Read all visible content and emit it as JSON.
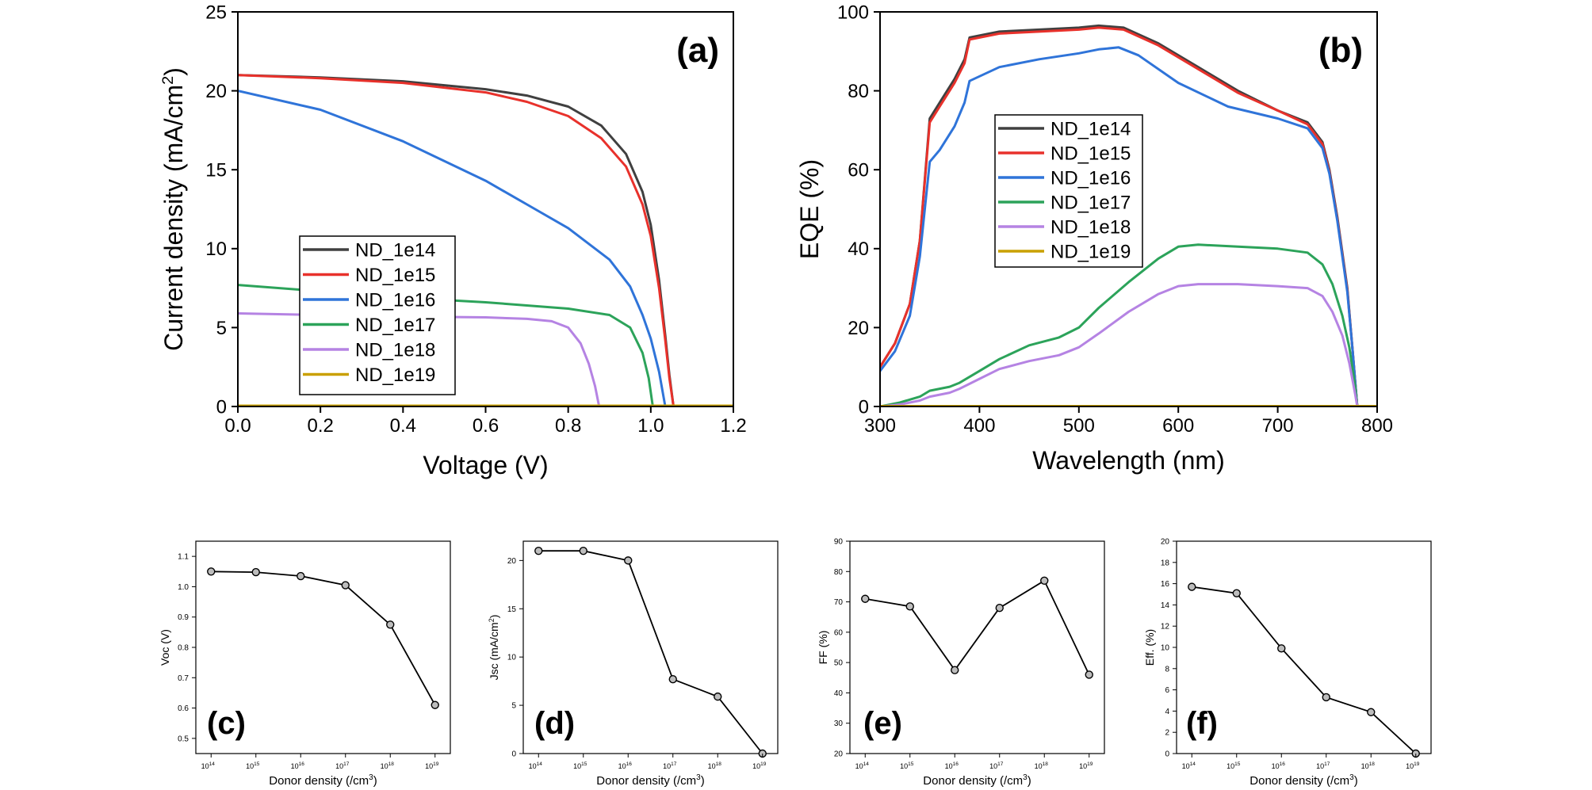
{
  "figure": {
    "colors": {
      "ND_1e14": "#404040",
      "ND_1e15": "#e8312b",
      "ND_1e16": "#2f74d9",
      "ND_1e17": "#2ca35a",
      "ND_1e18": "#b583e3",
      "ND_1e19": "#c9a000",
      "marker": "#000000"
    }
  },
  "chart_data": [
    {
      "id": "a",
      "panel_label": "(a)",
      "type": "line",
      "xlabel": "Voltage (V)",
      "ylabel_main": "Current density (mA/cm",
      "ylabel_sup": "2",
      "ylabel_tail": ")",
      "xlim": [
        0.0,
        1.2
      ],
      "ylim": [
        0,
        25
      ],
      "xticks": [
        0.0,
        0.2,
        0.4,
        0.6,
        0.8,
        1.0,
        1.2
      ],
      "xtick_labels": [
        "0.0",
        "0.2",
        "0.4",
        "0.6",
        "0.8",
        "1.0",
        "1.2"
      ],
      "yticks": [
        0,
        5,
        10,
        15,
        20,
        25
      ],
      "ytick_labels": [
        "0",
        "5",
        "10",
        "15",
        "20",
        "25"
      ],
      "legend": [
        "ND_1e14",
        "ND_1e15",
        "ND_1e16",
        "ND_1e17",
        "ND_1e18",
        "ND_1e19"
      ],
      "series": [
        {
          "name": "ND_1e14",
          "x": [
            0,
            0.2,
            0.4,
            0.6,
            0.7,
            0.8,
            0.88,
            0.94,
            0.98,
            1.0,
            1.02,
            1.035,
            1.045,
            1.055
          ],
          "y": [
            21.0,
            20.85,
            20.6,
            20.1,
            19.7,
            19.0,
            17.8,
            16.0,
            13.6,
            11.5,
            8.0,
            4.5,
            2.0,
            0
          ]
        },
        {
          "name": "ND_1e15",
          "x": [
            0,
            0.2,
            0.4,
            0.6,
            0.7,
            0.8,
            0.88,
            0.94,
            0.98,
            1.0,
            1.02,
            1.035,
            1.045,
            1.055
          ],
          "y": [
            21.0,
            20.8,
            20.5,
            19.9,
            19.3,
            18.4,
            17.0,
            15.2,
            12.8,
            10.8,
            7.5,
            4.2,
            1.8,
            0
          ]
        },
        {
          "name": "ND_1e16",
          "x": [
            0,
            0.2,
            0.4,
            0.6,
            0.7,
            0.8,
            0.9,
            0.95,
            0.98,
            1.0,
            1.02,
            1.035
          ],
          "y": [
            20.0,
            18.8,
            16.8,
            14.3,
            12.8,
            11.3,
            9.3,
            7.6,
            5.8,
            4.3,
            2.2,
            0
          ]
        },
        {
          "name": "ND_1e17",
          "x": [
            0,
            0.2,
            0.4,
            0.6,
            0.8,
            0.9,
            0.95,
            0.98,
            0.995,
            1.005
          ],
          "y": [
            7.7,
            7.3,
            6.9,
            6.6,
            6.2,
            5.8,
            5.0,
            3.4,
            1.8,
            0
          ]
        },
        {
          "name": "ND_1e18",
          "x": [
            0,
            0.2,
            0.4,
            0.6,
            0.7,
            0.76,
            0.8,
            0.83,
            0.85,
            0.865,
            0.875
          ],
          "y": [
            5.9,
            5.8,
            5.7,
            5.65,
            5.55,
            5.4,
            5.0,
            4.0,
            2.7,
            1.3,
            0
          ]
        },
        {
          "name": "ND_1e19",
          "x": [
            0,
            1.2
          ],
          "y": [
            0.05,
            0.05
          ]
        }
      ]
    },
    {
      "id": "b",
      "panel_label": "(b)",
      "type": "line",
      "xlabel": "Wavelength (nm)",
      "ylabel": "EQE (%)",
      "xlim": [
        300,
        800
      ],
      "ylim": [
        0,
        100
      ],
      "xticks": [
        300,
        400,
        500,
        600,
        700,
        800
      ],
      "xtick_labels": [
        "300",
        "400",
        "500",
        "600",
        "700",
        "800"
      ],
      "yticks": [
        0,
        20,
        40,
        60,
        80,
        100
      ],
      "ytick_labels": [
        "0",
        "20",
        "40",
        "60",
        "80",
        "100"
      ],
      "legend": [
        "ND_1e14",
        "ND_1e15",
        "ND_1e16",
        "ND_1e17",
        "ND_1e18",
        "ND_1e19"
      ],
      "series": [
        {
          "name": "ND_1e14",
          "x": [
            300,
            315,
            330,
            340,
            350,
            360,
            375,
            385,
            390,
            420,
            460,
            500,
            520,
            545,
            580,
            620,
            660,
            700,
            730,
            745,
            752,
            760,
            770,
            775,
            780
          ],
          "y": [
            10,
            16,
            26,
            42,
            73,
            77,
            83,
            88,
            93.5,
            95,
            95.5,
            96,
            96.5,
            96,
            92,
            86,
            80,
            75,
            72,
            67,
            60,
            48,
            30,
            15,
            0
          ]
        },
        {
          "name": "ND_1e15",
          "x": [
            300,
            315,
            330,
            340,
            350,
            360,
            375,
            385,
            390,
            420,
            460,
            500,
            520,
            545,
            580,
            620,
            660,
            700,
            730,
            745,
            752,
            760,
            770,
            775,
            780
          ],
          "y": [
            10,
            16,
            26,
            42,
            72,
            76,
            82,
            87,
            93,
            94.5,
            95,
            95.5,
            96,
            95.5,
            91.5,
            85.5,
            79.5,
            75,
            71.5,
            66.5,
            59.5,
            47.5,
            29.5,
            15,
            0
          ]
        },
        {
          "name": "ND_1e16",
          "x": [
            300,
            315,
            330,
            340,
            350,
            360,
            375,
            385,
            390,
            420,
            460,
            500,
            520,
            540,
            560,
            600,
            650,
            700,
            730,
            745,
            752,
            760,
            770,
            775,
            780
          ],
          "y": [
            9,
            14,
            23,
            38,
            62,
            65,
            71,
            77,
            82.5,
            86,
            88,
            89.5,
            90.5,
            91,
            89,
            82,
            76,
            73,
            70.5,
            65.5,
            59,
            47,
            29,
            15,
            0
          ]
        },
        {
          "name": "ND_1e17",
          "x": [
            300,
            320,
            340,
            350,
            370,
            380,
            400,
            420,
            450,
            480,
            500,
            520,
            550,
            580,
            600,
            620,
            660,
            700,
            730,
            745,
            755,
            765,
            772,
            778,
            780
          ],
          "y": [
            0,
            1,
            2.5,
            4,
            5,
            6,
            9,
            12,
            15.5,
            17.5,
            20,
            25,
            31.5,
            37.5,
            40.5,
            41,
            40.5,
            40,
            39,
            36,
            31,
            23,
            15,
            5,
            0
          ]
        },
        {
          "name": "ND_1e18",
          "x": [
            300,
            320,
            340,
            350,
            370,
            380,
            400,
            420,
            450,
            480,
            500,
            520,
            550,
            580,
            600,
            620,
            660,
            700,
            730,
            745,
            755,
            765,
            772,
            778,
            780
          ],
          "y": [
            0,
            0.5,
            1.5,
            2.5,
            3.5,
            4.5,
            7,
            9.5,
            11.5,
            13,
            15,
            18.5,
            24,
            28.5,
            30.5,
            31,
            31,
            30.5,
            30,
            28,
            24,
            18,
            11,
            3,
            0
          ]
        },
        {
          "name": "ND_1e19",
          "x": [
            300,
            800
          ],
          "y": [
            0.1,
            0.1
          ]
        }
      ]
    },
    {
      "id": "c",
      "panel_label": "(c)",
      "type": "scatter",
      "xlabel": "Donor density (/cm",
      "xlabel_sup": "3",
      "xlabel_tail": ")",
      "ylabel": "Voc (V)",
      "categories": [
        "10",
        "10",
        "10",
        "10",
        "10",
        "10"
      ],
      "category_exponents": [
        "14",
        "15",
        "16",
        "17",
        "18",
        "19"
      ],
      "values": [
        1.05,
        1.048,
        1.035,
        1.005,
        0.875,
        0.61
      ],
      "ylim": [
        0.45,
        1.15
      ],
      "yticks": [
        0.5,
        0.6,
        0.7,
        0.8,
        0.9,
        1.0,
        1.1
      ],
      "ytick_labels": [
        "0.5",
        "0.6",
        "0.7",
        "0.8",
        "0.9",
        "1.0",
        "1.1"
      ]
    },
    {
      "id": "d",
      "panel_label": "(d)",
      "type": "scatter",
      "xlabel": "Donor density (/cm",
      "xlabel_sup": "3",
      "xlabel_tail": ")",
      "ylabel": "Jsc (mA/cm",
      "ylabel_sup": "2",
      "ylabel_tail": ")",
      "categories": [
        "10",
        "10",
        "10",
        "10",
        "10",
        "10"
      ],
      "category_exponents": [
        "14",
        "15",
        "16",
        "17",
        "18",
        "19"
      ],
      "values": [
        21.0,
        21.0,
        20.0,
        7.7,
        5.9,
        0.0
      ],
      "ylim": [
        0,
        22
      ],
      "yticks": [
        0,
        5,
        10,
        15,
        20
      ],
      "ytick_labels": [
        "0",
        "5",
        "10",
        "15",
        "20"
      ]
    },
    {
      "id": "e",
      "panel_label": "(e)",
      "type": "scatter",
      "xlabel": "Donor density (/cm",
      "xlabel_sup": "3",
      "xlabel_tail": ")",
      "ylabel": "FF (%)",
      "categories": [
        "10",
        "10",
        "10",
        "10",
        "10",
        "10"
      ],
      "category_exponents": [
        "14",
        "15",
        "16",
        "17",
        "18",
        "19"
      ],
      "values": [
        71,
        68.5,
        47.5,
        68,
        77,
        46
      ],
      "ylim": [
        20,
        90
      ],
      "yticks": [
        20,
        30,
        40,
        50,
        60,
        70,
        80,
        90
      ],
      "ytick_labels": [
        "20",
        "30",
        "40",
        "50",
        "60",
        "70",
        "80",
        "90"
      ]
    },
    {
      "id": "f",
      "panel_label": "(f)",
      "type": "scatter",
      "xlabel": "Donor density (/cm",
      "xlabel_sup": "3",
      "xlabel_tail": ")",
      "ylabel": "Eff. (%)",
      "categories": [
        "10",
        "10",
        "10",
        "10",
        "10",
        "10"
      ],
      "category_exponents": [
        "14",
        "15",
        "16",
        "17",
        "18",
        "19"
      ],
      "values": [
        15.7,
        15.1,
        9.9,
        5.3,
        3.9,
        0.0
      ],
      "ylim": [
        0,
        20
      ],
      "yticks": [
        0,
        2,
        4,
        6,
        8,
        10,
        12,
        14,
        16,
        18,
        20
      ],
      "ytick_labels": [
        "0",
        "2",
        "4",
        "6",
        "8",
        "10",
        "12",
        "14",
        "16",
        "18",
        "20"
      ]
    }
  ]
}
